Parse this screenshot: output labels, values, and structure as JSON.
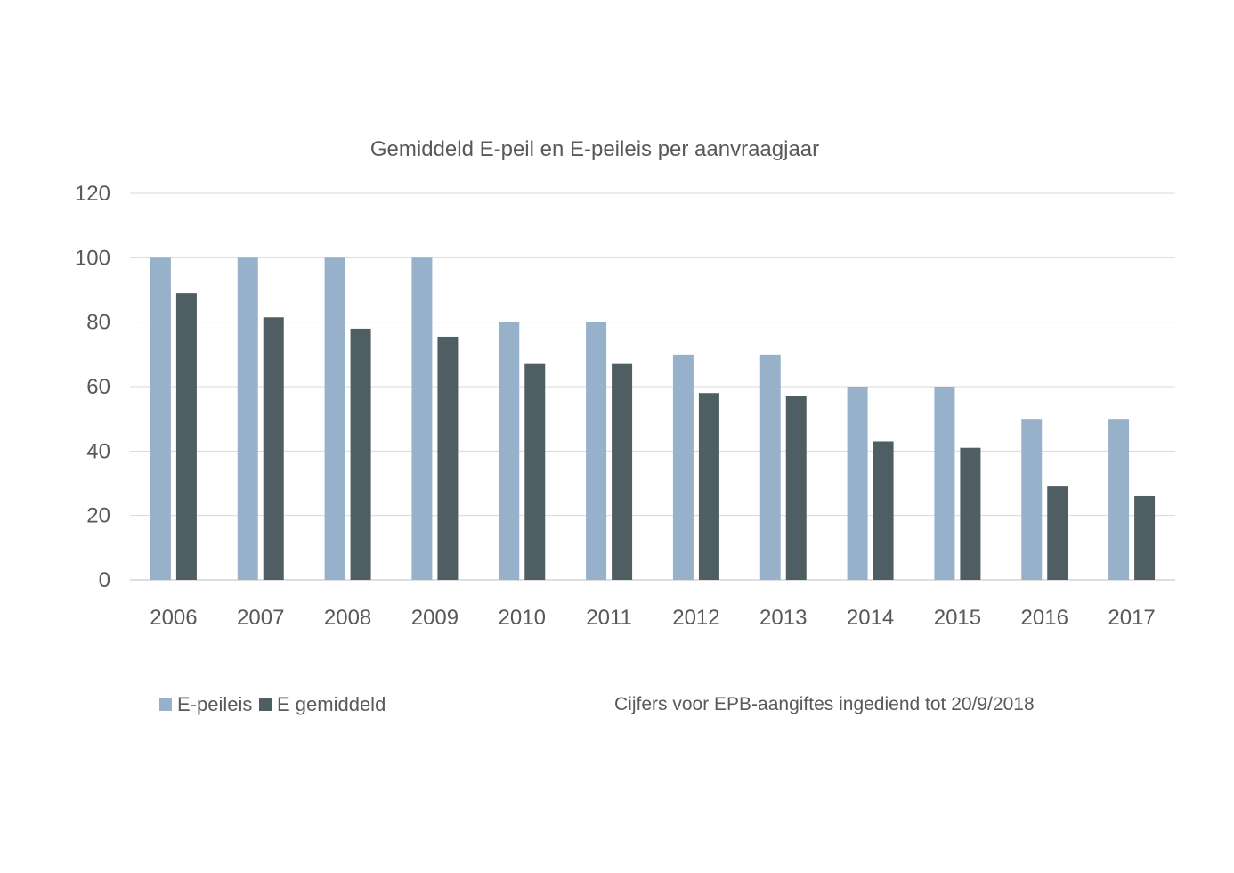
{
  "chart_data": {
    "type": "bar",
    "title": "Gemiddeld E-peil en E-peileis per aanvraagjaar",
    "xlabel": "",
    "ylabel": "",
    "categories": [
      "2006",
      "2007",
      "2008",
      "2009",
      "2010",
      "2011",
      "2012",
      "2013",
      "2014",
      "2015",
      "2016",
      "2017"
    ],
    "series": [
      {
        "name": "E-peileis",
        "color": "#97b1cb",
        "values": [
          100,
          100,
          100,
          100,
          80,
          80,
          70,
          70,
          60,
          60,
          50,
          50
        ]
      },
      {
        "name": "E gemiddeld",
        "color": "#4f5e63",
        "values": [
          89,
          81.5,
          78,
          75.5,
          67,
          67,
          58,
          57,
          43,
          41,
          29,
          26
        ]
      }
    ],
    "ylim": [
      0,
      120
    ],
    "yticks": [
      "0",
      "20",
      "40",
      "60",
      "80",
      "100",
      "120"
    ],
    "grid": true,
    "legend_position": "bottom-left",
    "note": "Cijfers voor EPB-aangiftes ingediend tot 20/9/2018"
  }
}
